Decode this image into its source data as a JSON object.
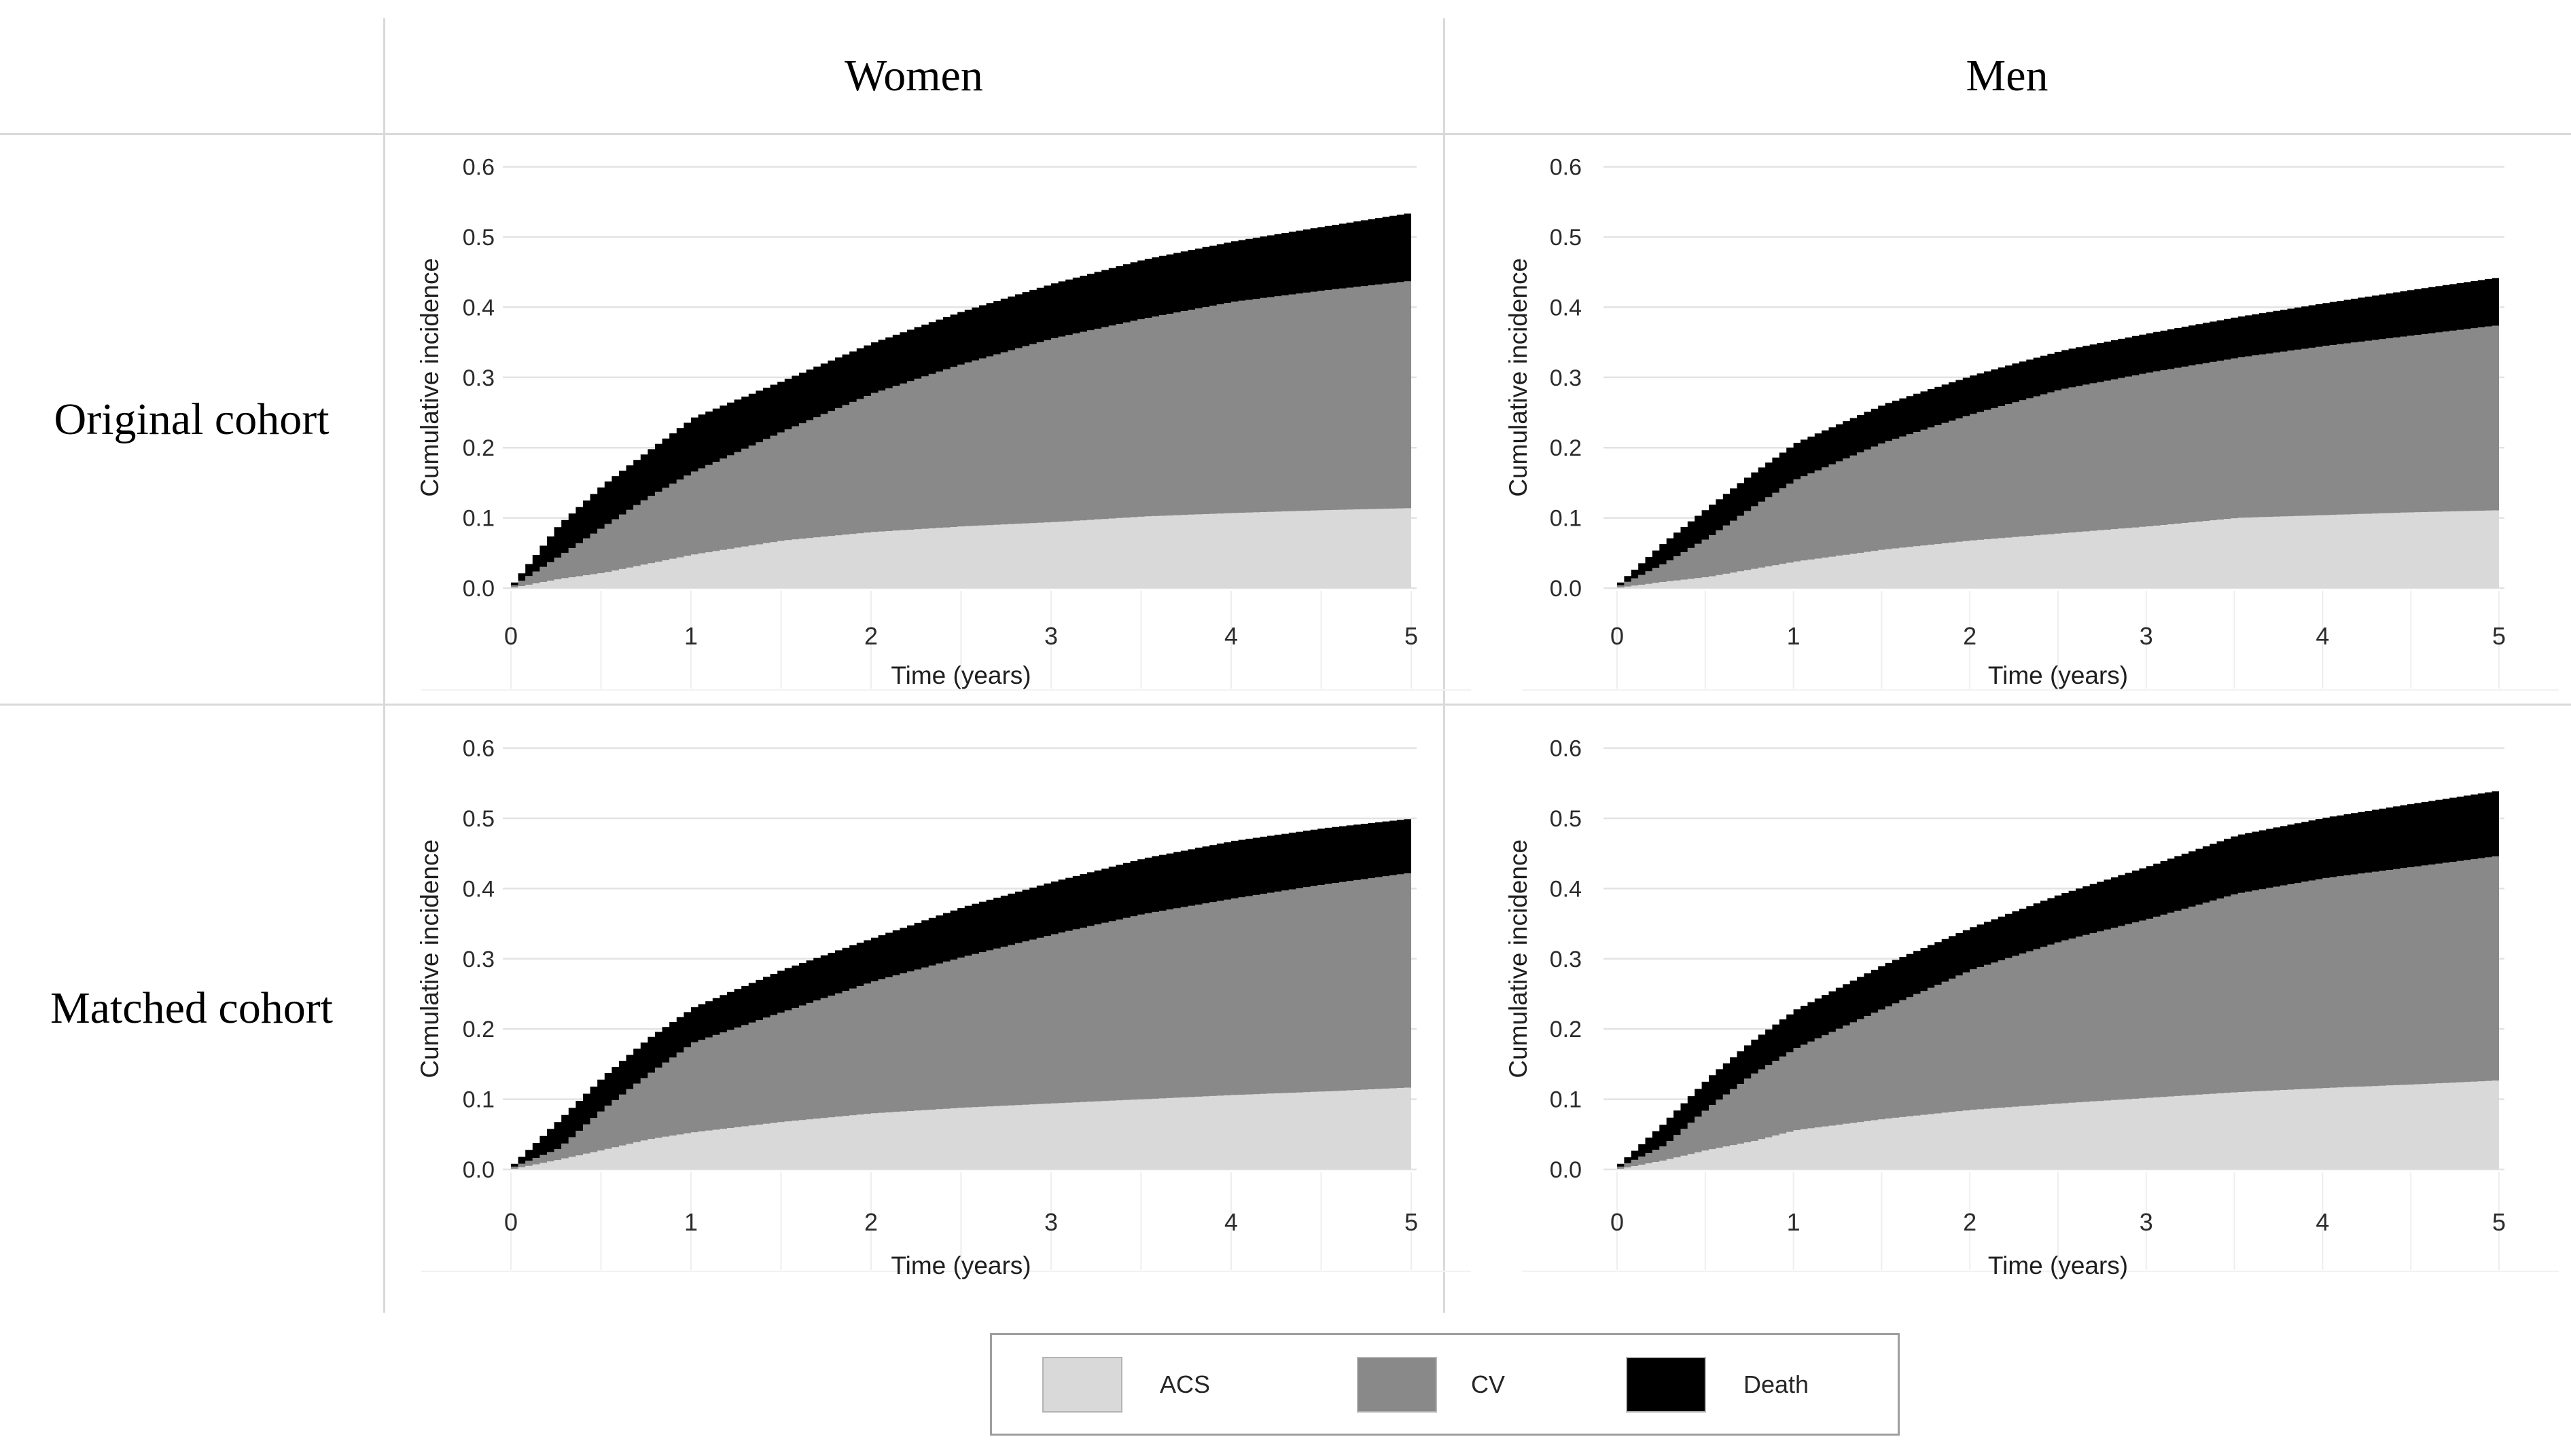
{
  "figure": {
    "column_headers": [
      "Women",
      "Men"
    ],
    "row_headers": [
      "Original cohort",
      "Matched cohort"
    ]
  },
  "axes": {
    "xlabel": "Time (years)",
    "ylabel": "Cumulative incidence",
    "xticks": [
      "0",
      "1",
      "2",
      "3",
      "4",
      "5"
    ],
    "yticks": [
      "0.0",
      "0.1",
      "0.2",
      "0.3",
      "0.4",
      "0.5",
      "0.6"
    ]
  },
  "legend": {
    "items": [
      {
        "label": "ACS",
        "color": "#d9d9d9"
      },
      {
        "label": "CV",
        "color": "#898989"
      },
      {
        "label": "Death",
        "color": "#000000"
      }
    ]
  },
  "colors": {
    "gridline": "#e3e3e3",
    "faint_gridline": "#eeeeee",
    "tick_text": "#2b2b2b",
    "axis_title_text": "#1f1f1f"
  },
  "chart_data": [
    {
      "type": "area",
      "stacked": true,
      "row": "Original cohort",
      "col": "Women",
      "title": "Original cohort / Women",
      "xlabel": "Time (years)",
      "ylabel": "Cumulative incidence",
      "xlim": [
        0,
        5
      ],
      "ylim": [
        0,
        0.6
      ],
      "grid": "horizontal",
      "x": [
        0,
        0.25,
        0.5,
        0.75,
        1,
        1.5,
        2,
        2.5,
        3,
        3.5,
        4,
        4.5,
        5
      ],
      "series": [
        {
          "name": "ACS",
          "values": [
            0.001,
            0.013,
            0.022,
            0.035,
            0.048,
            0.068,
            0.08,
            0.088,
            0.094,
            0.102,
            0.107,
            0.111,
            0.114
          ]
        },
        {
          "name": "CV",
          "values": [
            0.003,
            0.032,
            0.066,
            0.095,
            0.118,
            0.156,
            0.198,
            0.232,
            0.262,
            0.282,
            0.301,
            0.313,
            0.324
          ]
        },
        {
          "name": "Death",
          "values": [
            0.004,
            0.045,
            0.06,
            0.066,
            0.077,
            0.072,
            0.072,
            0.075,
            0.078,
            0.084,
            0.086,
            0.091,
            0.097
          ]
        }
      ]
    },
    {
      "type": "area",
      "stacked": true,
      "row": "Original cohort",
      "col": "Men",
      "title": "Original cohort / Men",
      "xlabel": "Time (years)",
      "ylabel": "Cumulative incidence",
      "xlim": [
        0,
        5
      ],
      "ylim": [
        0,
        0.6
      ],
      "grid": "horizontal",
      "x": [
        0,
        0.25,
        0.5,
        0.75,
        1,
        1.5,
        2,
        2.5,
        3,
        3.5,
        4,
        4.5,
        5
      ],
      "series": [
        {
          "name": "ACS",
          "values": [
            0.001,
            0.009,
            0.016,
            0.027,
            0.038,
            0.055,
            0.068,
            0.078,
            0.088,
            0.1,
            0.104,
            0.108,
            0.111
          ]
        },
        {
          "name": "CV",
          "values": [
            0.003,
            0.026,
            0.056,
            0.088,
            0.117,
            0.153,
            0.18,
            0.205,
            0.219,
            0.228,
            0.241,
            0.252,
            0.264
          ]
        },
        {
          "name": "Death",
          "values": [
            0.004,
            0.03,
            0.043,
            0.048,
            0.052,
            0.054,
            0.055,
            0.055,
            0.056,
            0.058,
            0.061,
            0.065,
            0.068
          ]
        }
      ]
    },
    {
      "type": "area",
      "stacked": true,
      "row": "Matched cohort",
      "col": "Women",
      "title": "Matched cohort / Women",
      "xlabel": "Time (years)",
      "ylabel": "Cumulative incidence",
      "xlim": [
        0,
        5
      ],
      "ylim": [
        0,
        0.6
      ],
      "grid": "horizontal",
      "x": [
        0,
        0.25,
        0.5,
        0.75,
        1,
        1.5,
        2,
        2.5,
        3,
        3.5,
        4,
        4.5,
        5
      ],
      "series": [
        {
          "name": "ACS",
          "values": [
            0.001,
            0.014,
            0.028,
            0.043,
            0.053,
            0.068,
            0.08,
            0.088,
            0.094,
            0.1,
            0.106,
            0.111,
            0.117
          ]
        },
        {
          "name": "CV",
          "values": [
            0.003,
            0.016,
            0.059,
            0.093,
            0.128,
            0.157,
            0.188,
            0.215,
            0.241,
            0.264,
            0.28,
            0.295,
            0.306
          ]
        },
        {
          "name": "Death",
          "values": [
            0.004,
            0.04,
            0.046,
            0.051,
            0.05,
            0.06,
            0.062,
            0.071,
            0.075,
            0.079,
            0.082,
            0.08,
            0.077
          ]
        }
      ]
    },
    {
      "type": "area",
      "stacked": true,
      "row": "Matched cohort",
      "col": "Men",
      "title": "Matched cohort / Men",
      "xlabel": "Time (years)",
      "ylabel": "Cumulative incidence",
      "xlim": [
        0,
        5
      ],
      "ylim": [
        0,
        0.6
      ],
      "grid": "horizontal",
      "x": [
        0,
        0.25,
        0.5,
        0.75,
        1,
        1.5,
        2,
        2.5,
        3,
        3.5,
        4,
        4.5,
        5
      ],
      "series": [
        {
          "name": "ACS",
          "values": [
            0.001,
            0.013,
            0.028,
            0.04,
            0.056,
            0.072,
            0.085,
            0.094,
            0.102,
            0.11,
            0.116,
            0.121,
            0.127
          ]
        },
        {
          "name": "CV",
          "values": [
            0.003,
            0.021,
            0.06,
            0.095,
            0.117,
            0.158,
            0.2,
            0.231,
            0.255,
            0.283,
            0.299,
            0.31,
            0.32
          ]
        },
        {
          "name": "Death",
          "values": [
            0.004,
            0.032,
            0.042,
            0.048,
            0.055,
            0.062,
            0.06,
            0.067,
            0.075,
            0.083,
            0.086,
            0.09,
            0.093
          ]
        }
      ]
    }
  ]
}
